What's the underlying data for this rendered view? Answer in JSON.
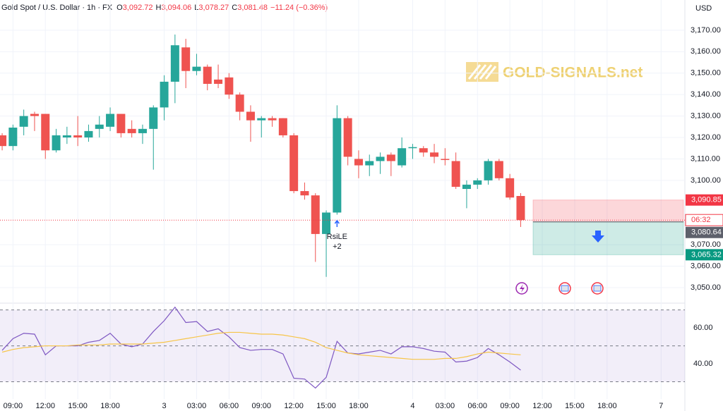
{
  "chart_data": [
    {
      "type": "candlestick",
      "header": {
        "symbol": "Gold Spot / U.S. Dollar · 1h · FX",
        "open_label": "O",
        "open": "3,092.72",
        "high_label": "H",
        "high": "3,094.06",
        "low_label": "L",
        "low": "3,078.27",
        "close_label": "C",
        "close": "3,081.48",
        "change": "−11.24 (−0.36%)"
      },
      "currency": "USD",
      "watermark": "GOLD-SIGNALS.net",
      "annotations": [
        "RsiLE",
        "+2"
      ],
      "countdown": "06:32",
      "up_color": "#26a69a",
      "down_color": "#ef5350",
      "x": [
        0,
        1,
        2,
        3,
        4,
        5,
        6,
        7,
        8,
        9,
        10,
        11,
        12,
        13,
        14,
        15,
        16,
        17,
        18,
        19,
        20,
        21,
        22,
        23,
        24,
        25,
        26,
        27,
        28,
        29,
        30,
        31,
        32,
        33,
        34,
        35,
        36,
        37,
        38,
        39,
        40,
        41,
        42,
        43,
        44,
        45,
        46,
        47,
        48
      ],
      "open": [
        3121,
        3116,
        3125,
        3131,
        3131,
        3114,
        3120,
        3121,
        3120,
        3124,
        3125,
        3131,
        3124,
        3122,
        3124,
        3134,
        3146,
        3162,
        3151,
        3153,
        3147,
        3148,
        3140,
        3132,
        3128,
        3129,
        3129,
        3121,
        3095,
        3093,
        3075,
        3085,
        3129,
        3110,
        3107,
        3109,
        3112,
        3107,
        3115,
        3115,
        3113,
        3110,
        3109,
        3096,
        3098,
        3100,
        3109,
        3101,
        3092.72
      ],
      "high": [
        3122,
        3126,
        3133,
        3132,
        3131,
        3124,
        3125,
        3130,
        3126,
        3130,
        3134,
        3131,
        3128,
        3126,
        3135,
        3149,
        3168,
        3166,
        3159,
        3154,
        3154,
        3150,
        3141,
        3135,
        3130,
        3130,
        3129,
        3122,
        3099,
        3094,
        3086,
        3135,
        3130,
        3114,
        3112,
        3113,
        3113,
        3120,
        3117,
        3116,
        3117,
        3115,
        3113,
        3100,
        3101,
        3110,
        3110,
        3103,
        3094.06
      ],
      "low": [
        3114,
        3114,
        3121,
        3123,
        3110,
        3113,
        3117,
        3116,
        3118,
        3120,
        3123,
        3120,
        3120,
        3117,
        3105,
        3128,
        3136,
        3143,
        3149,
        3142,
        3143,
        3138,
        3128,
        3118,
        3120,
        3125,
        3120,
        3094,
        3091,
        3062,
        3055,
        3084,
        3107,
        3101,
        3102,
        3103,
        3102,
        3106,
        3110,
        3111,
        3108,
        3107,
        3096,
        3087,
        3096,
        3098,
        3100,
        3091,
        3078.27
      ],
      "close": [
        3116,
        3124.6,
        3130,
        3130,
        3114,
        3121,
        3121,
        3120,
        3123,
        3126,
        3131,
        3122,
        3122,
        3124,
        3134,
        3146,
        3163,
        3151,
        3153,
        3145,
        3145,
        3140,
        3132,
        3128,
        3129,
        3128,
        3121,
        3095,
        3093,
        3075,
        3085,
        3129,
        3111,
        3107,
        3109,
        3111,
        3109,
        3115,
        3115.5,
        3113,
        3111,
        3109.5,
        3097,
        3098,
        3100,
        3109,
        3101,
        3092,
        3081.48
      ],
      "xlim": [
        -0.2,
        63.2
      ],
      "xticks": [
        {
          "value": 1,
          "label": "09:00"
        },
        {
          "value": 4,
          "label": "12:00"
        },
        {
          "value": 7,
          "label": "15:00"
        },
        {
          "value": 10,
          "label": "18:00"
        },
        {
          "value": 15,
          "label": "3"
        },
        {
          "value": 18,
          "label": "03:00"
        },
        {
          "value": 21,
          "label": "06:00"
        },
        {
          "value": 24,
          "label": "09:00"
        },
        {
          "value": 27,
          "label": "12:00"
        },
        {
          "value": 30,
          "label": "15:00"
        },
        {
          "value": 33,
          "label": "18:00"
        },
        {
          "value": 38,
          "label": "4"
        },
        {
          "value": 41,
          "label": "03:00"
        },
        {
          "value": 44,
          "label": "06:00"
        },
        {
          "value": 47,
          "label": "09:00"
        },
        {
          "value": 50,
          "label": "12:00"
        },
        {
          "value": 53,
          "label": "15:00"
        },
        {
          "value": 56,
          "label": "18:00"
        },
        {
          "value": 61,
          "label": "7"
        }
      ],
      "ylim": [
        3044.4,
        3184.1
      ],
      "yticks": [
        {
          "value": 3170,
          "label": "3,170.00"
        },
        {
          "value": 3160,
          "label": "3,160.00"
        },
        {
          "value": 3150,
          "label": "3,150.00"
        },
        {
          "value": 3140,
          "label": "3,140.00"
        },
        {
          "value": 3130,
          "label": "3,130.00"
        },
        {
          "value": 3120,
          "label": "3,120.00"
        },
        {
          "value": 3110,
          "label": "3,110.00"
        },
        {
          "value": 3100,
          "label": "3,100.00"
        },
        {
          "value": 3070,
          "label": "3,070.00"
        },
        {
          "value": 3060,
          "label": "3,060.00"
        },
        {
          "value": 3050,
          "label": "3,050.00"
        }
      ],
      "price_tags": [
        {
          "value": 3090.85,
          "label": "3,090.85",
          "color": "#f23645"
        },
        {
          "value": 3080.64,
          "label": "3,080.64",
          "color": "#5d606b"
        },
        {
          "value": 3065.32,
          "label": "3,065.32",
          "color": "#089981"
        }
      ]
    },
    {
      "type": "line",
      "series": [
        {
          "color": "#7e57c2",
          "values": [
            47.5,
            54,
            57,
            56.5,
            45,
            50,
            50,
            50,
            52,
            53,
            57,
            51,
            49.5,
            51,
            58,
            64,
            71.5,
            63,
            63.5,
            58,
            59.5,
            55,
            49,
            47.5,
            48,
            48,
            45.5,
            32,
            31.5,
            26.5,
            32.5,
            52.5,
            46,
            45.5,
            46.5,
            47.5,
            45.5,
            49.5,
            49.5,
            48.5,
            47,
            46.5,
            41,
            41.5,
            43.5,
            48.5,
            45,
            41,
            36.5
          ]
        },
        {
          "color": "#f7c548",
          "values": [
            46.5,
            48,
            49,
            49.5,
            50,
            50,
            50,
            50.5,
            50.5,
            50.5,
            51,
            51,
            51,
            51,
            51.5,
            52,
            53,
            54,
            55,
            56,
            57,
            57.5,
            57.5,
            57,
            56.5,
            56.5,
            56,
            55,
            54,
            52,
            49,
            47.5,
            46,
            45,
            44.5,
            44,
            43.5,
            43,
            42.5,
            42.5,
            42.5,
            43,
            43,
            44,
            45.5,
            46.5,
            46,
            45.5,
            45
          ]
        }
      ],
      "ylim": [
        20.4,
        72.2
      ],
      "yticks": [
        {
          "value": 60,
          "label": "60.00"
        },
        {
          "value": 40,
          "label": "40.00"
        }
      ],
      "levels": [
        70,
        50,
        30
      ],
      "band_color": "#7e57c2"
    }
  ]
}
